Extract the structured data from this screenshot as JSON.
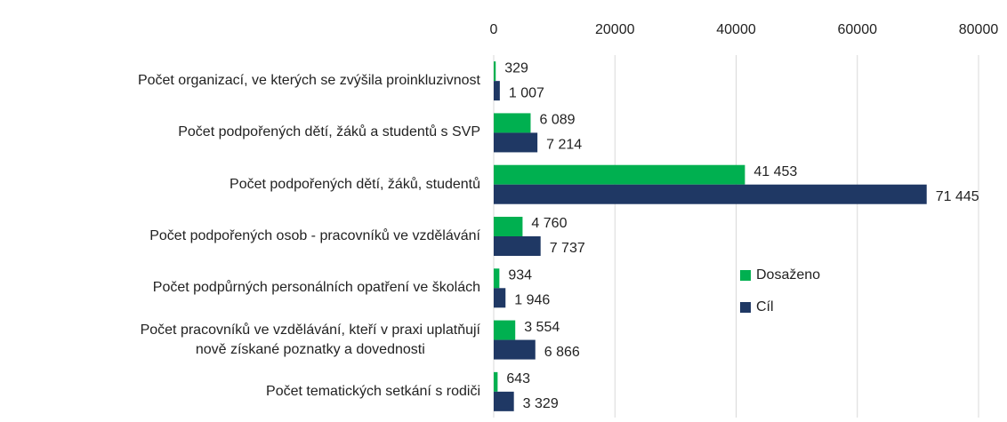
{
  "chart_data": {
    "type": "bar",
    "orientation": "horizontal",
    "categories": [
      "Počet organizací, ve kterých se zvýšila proinkluzivnost",
      "Počet podpořených dětí, žáků a studentů s SVP",
      "Počet podpořených dětí, žáků, studentů",
      "Počet podpořených osob - pracovníků ve vzdělávání",
      "Počet podpůrných personálních opatření ve školách",
      "Počet pracovníků ve vzdělávání, kteří v praxi uplatňují\nnově získané poznatky a dovednosti",
      "Počet tematických setkání s rodiči"
    ],
    "series": [
      {
        "name": "Dosaženo",
        "color": "#00b050",
        "values": [
          329,
          6089,
          41453,
          4760,
          934,
          3554,
          643
        ],
        "value_labels": [
          "329",
          "6 089",
          "41 453",
          "4 760",
          "934",
          "3 554",
          "643"
        ]
      },
      {
        "name": "Cíl",
        "color": "#1f3864",
        "values": [
          1007,
          7214,
          71445,
          7737,
          1946,
          6866,
          3329
        ],
        "value_labels": [
          "1 007",
          "7 214",
          "71 445",
          "7 737",
          "1 946",
          "6 866",
          "3 329"
        ]
      }
    ],
    "xlim": [
      0,
      80000
    ],
    "xticks": [
      0,
      20000,
      40000,
      60000,
      80000
    ],
    "grid": true,
    "legend": "right"
  }
}
